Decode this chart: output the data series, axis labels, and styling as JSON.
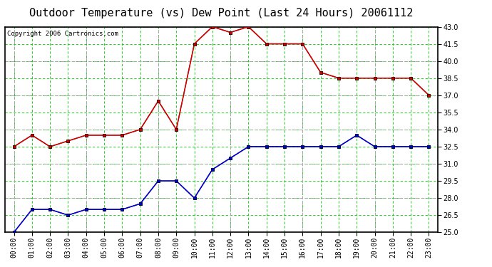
{
  "title": "Outdoor Temperature (vs) Dew Point (Last 24 Hours) 20061112",
  "copyright": "Copyright 2006 Cartronics.com",
  "x_labels": [
    "00:00",
    "01:00",
    "02:00",
    "03:00",
    "04:00",
    "05:00",
    "06:00",
    "07:00",
    "08:00",
    "09:00",
    "10:00",
    "11:00",
    "12:00",
    "13:00",
    "14:00",
    "15:00",
    "16:00",
    "17:00",
    "18:00",
    "19:00",
    "20:00",
    "21:00",
    "22:00",
    "23:00"
  ],
  "temp_data": [
    32.5,
    33.5,
    32.5,
    33.0,
    33.5,
    33.5,
    33.5,
    34.0,
    36.5,
    34.0,
    41.5,
    43.0,
    42.5,
    43.0,
    41.5,
    41.5,
    41.5,
    39.0,
    38.5,
    38.5,
    38.5,
    38.5,
    38.5,
    37.0
  ],
  "dew_data": [
    25.0,
    27.0,
    27.0,
    26.5,
    27.0,
    27.0,
    27.0,
    27.5,
    29.5,
    29.5,
    28.0,
    30.5,
    31.5,
    32.5,
    32.5,
    32.5,
    32.5,
    32.5,
    32.5,
    33.5,
    32.5,
    32.5,
    32.5,
    32.5
  ],
  "temp_color": "#cc0000",
  "dew_color": "#0000cc",
  "bg_color": "#ffffff",
  "plot_bg_color": "#ffffff",
  "grid_color_major": "#aaaaaa",
  "grid_color_minor": "#00cc00",
  "ylim": [
    25.0,
    43.0
  ],
  "yticks": [
    25.0,
    26.5,
    28.0,
    29.5,
    31.0,
    32.5,
    34.0,
    35.5,
    37.0,
    38.5,
    40.0,
    41.5,
    43.0
  ],
  "title_fontsize": 11,
  "copyright_fontsize": 6.5,
  "tick_fontsize": 7,
  "marker": "s",
  "marker_size": 2.5,
  "line_width": 1.0
}
